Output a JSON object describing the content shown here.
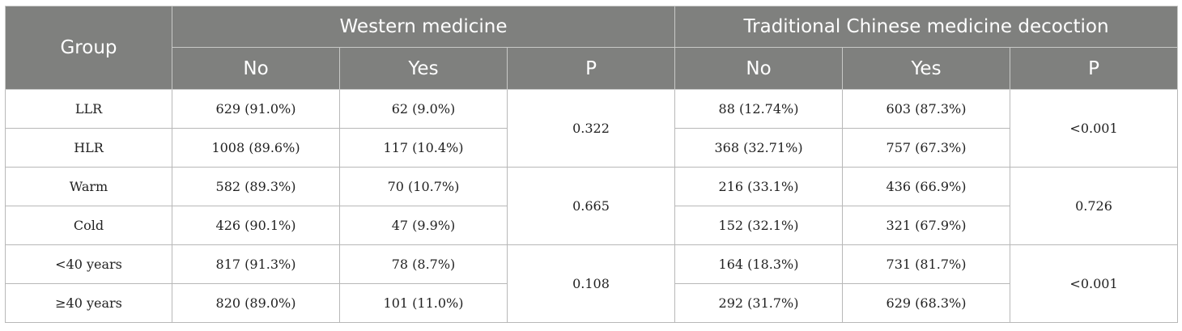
{
  "table": {
    "header": {
      "group_label": "Group",
      "western_label": "Western medicine",
      "tcm_label": "Traditional Chinese medicine decoction",
      "sub": [
        "No",
        "Yes",
        "P",
        "No",
        "Yes",
        "P"
      ]
    },
    "sections": [
      {
        "rows": [
          {
            "group": "LLR",
            "wm_no": "629 (91.0%)",
            "wm_yes": "62 (9.0%)",
            "tcm_no": "88 (12.74%)",
            "tcm_yes": "603 (87.3%)"
          },
          {
            "group": "HLR",
            "wm_no": "1008 (89.6%)",
            "wm_yes": "117 (10.4%)",
            "tcm_no": "368 (32.71%)",
            "tcm_yes": "757 (67.3%)"
          }
        ],
        "wm_p": "0.322",
        "tcm_p": "<0.001"
      },
      {
        "rows": [
          {
            "group": "Warm",
            "wm_no": "582 (89.3%)",
            "wm_yes": "70 (10.7%)",
            "tcm_no": "216 (33.1%)",
            "tcm_yes": "436 (66.9%)"
          },
          {
            "group": "Cold",
            "wm_no": "426 (90.1%)",
            "wm_yes": "47 (9.9%)",
            "tcm_no": "152 (32.1%)",
            "tcm_yes": "321 (67.9%)"
          }
        ],
        "wm_p": "0.665",
        "tcm_p": "0.726"
      },
      {
        "rows": [
          {
            "group": "<40 years",
            "wm_no": "817 (91.3%)",
            "wm_yes": "78 (8.7%)",
            "tcm_no": "164 (18.3%)",
            "tcm_yes": "731 (81.7%)"
          },
          {
            "group": "≥40 years",
            "wm_no": "820 (89.0%)",
            "wm_yes": "101 (11.0%)",
            "tcm_no": "292 (31.7%)",
            "tcm_yes": "629 (68.3%)"
          }
        ],
        "wm_p": "0.108",
        "tcm_p": "<0.001"
      }
    ]
  }
}
